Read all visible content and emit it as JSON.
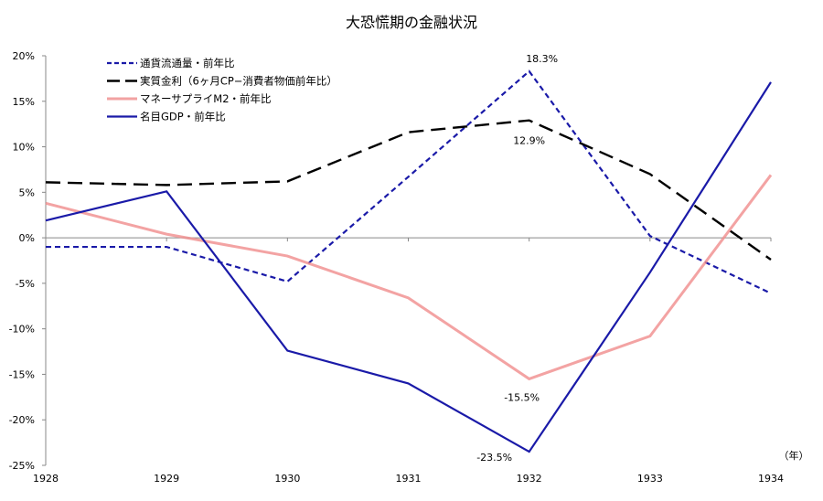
{
  "chart_data": {
    "type": "line",
    "title": "大恐慌期の金融状況",
    "xlabel": "（年）",
    "ylabel": "",
    "x": [
      "1928",
      "1929",
      "1930",
      "1931",
      "1932",
      "1933",
      "1934"
    ],
    "ylim": [
      -25,
      20
    ],
    "yticks": [
      "20%",
      "15%",
      "10%",
      "5%",
      "0%",
      "-5%",
      "-10%",
      "-15%",
      "-20%",
      "-25%"
    ],
    "ytick_values": [
      20,
      15,
      10,
      5,
      0,
      -5,
      -10,
      -15,
      -20,
      -25
    ],
    "grid": false,
    "legend_position": "top-left",
    "series": [
      {
        "name": "通貨流通量・前年比",
        "color": "#1a1aa8",
        "style": "dashed",
        "values": [
          -1.0,
          -1.0,
          -4.8,
          6.7,
          18.3,
          0.2,
          -6.1
        ]
      },
      {
        "name": "実質金利（6ヶ月CP−消費者物価前年比）",
        "color": "#000000",
        "style": "longdash",
        "values": [
          6.1,
          5.8,
          6.2,
          11.6,
          12.9,
          7.0,
          -2.4
        ]
      },
      {
        "name": "マネーサプライM2・前年比",
        "color": "#f08c8c",
        "style": "solid-light",
        "values": [
          3.8,
          0.4,
          -2.0,
          -6.6,
          -15.5,
          -10.8,
          6.9
        ]
      },
      {
        "name": "名目GDP・前年比",
        "color": "#1a1aa8",
        "style": "solid",
        "values": [
          1.9,
          5.1,
          -12.4,
          -16.0,
          -23.5,
          -3.8,
          17.1
        ]
      }
    ],
    "annotations": [
      {
        "text": "18.3%",
        "series": 0,
        "x": "1932"
      },
      {
        "text": "12.9%",
        "series": 1,
        "x": "1932"
      },
      {
        "text": "-15.5%",
        "series": 2,
        "x": "1932"
      },
      {
        "text": "-23.5%",
        "series": 3,
        "x": "1932"
      }
    ]
  }
}
